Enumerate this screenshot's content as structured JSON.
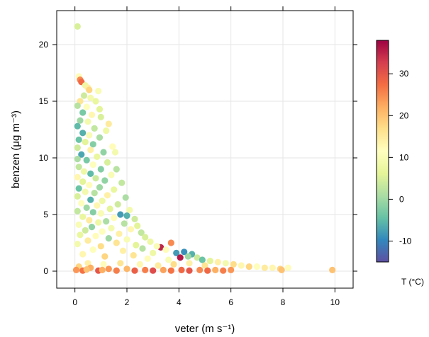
{
  "chart_data": {
    "type": "scatter",
    "xlabel": "veter (m s⁻¹)",
    "ylabel": "benzen (μg m⁻³)",
    "colorbar_label": "T (°C)",
    "x_ticks": [
      "0",
      "2",
      "4",
      "6",
      "8",
      "10"
    ],
    "y_ticks": [
      "0",
      "5",
      "10",
      "15",
      "20"
    ],
    "colorbar_ticks": [
      "-10",
      "0",
      "10",
      "20",
      "30"
    ],
    "xlim": [
      -0.7,
      10.7
    ],
    "ylim": [
      -1.5,
      23
    ],
    "color_range": [
      -15,
      38
    ],
    "grid": true,
    "palette": [
      "#5e4fa2",
      "#3288bd",
      "#66c2a5",
      "#abdda4",
      "#e6f598",
      "#ffffbf",
      "#fee08b",
      "#fdae61",
      "#f46d43",
      "#d53e4f",
      "#9e0142"
    ],
    "points": [
      {
        "x": 0.1,
        "y": 21.6,
        "t": 5
      },
      {
        "x": 0.15,
        "y": 17.2,
        "t": 12
      },
      {
        "x": 0.2,
        "y": 16.9,
        "t": 25
      },
      {
        "x": 0.25,
        "y": 16.7,
        "t": 28
      },
      {
        "x": 0.4,
        "y": 16.4,
        "t": 8
      },
      {
        "x": 0.5,
        "y": 16.2,
        "t": 14
      },
      {
        "x": 0.55,
        "y": 16.0,
        "t": 18
      },
      {
        "x": 0.9,
        "y": 15.9,
        "t": 10
      },
      {
        "x": 0.35,
        "y": 15.5,
        "t": 4
      },
      {
        "x": 0.6,
        "y": 15.3,
        "t": 9
      },
      {
        "x": 0.2,
        "y": 15.0,
        "t": 16
      },
      {
        "x": 0.8,
        "y": 15.0,
        "t": 7
      },
      {
        "x": 0.1,
        "y": 14.6,
        "t": 2
      },
      {
        "x": 0.45,
        "y": 14.5,
        "t": 11
      },
      {
        "x": 0.95,
        "y": 14.3,
        "t": 6
      },
      {
        "x": 0.3,
        "y": 14.0,
        "t": -3
      },
      {
        "x": 0.65,
        "y": 13.8,
        "t": 13
      },
      {
        "x": 1.0,
        "y": 13.6,
        "t": 5
      },
      {
        "x": 0.2,
        "y": 13.3,
        "t": 0
      },
      {
        "x": 0.5,
        "y": 13.2,
        "t": 9
      },
      {
        "x": 1.3,
        "y": 13.0,
        "t": 15
      },
      {
        "x": 0.1,
        "y": 12.8,
        "t": -5
      },
      {
        "x": 0.75,
        "y": 12.6,
        "t": 3
      },
      {
        "x": 1.2,
        "y": 12.4,
        "t": 8
      },
      {
        "x": 0.3,
        "y": 12.2,
        "t": -6
      },
      {
        "x": 0.55,
        "y": 12.0,
        "t": 10
      },
      {
        "x": 0.95,
        "y": 11.8,
        "t": 1
      },
      {
        "x": 0.15,
        "y": 11.6,
        "t": -4
      },
      {
        "x": 0.4,
        "y": 11.4,
        "t": 6
      },
      {
        "x": 0.7,
        "y": 11.2,
        "t": -2
      },
      {
        "x": 1.45,
        "y": 11.0,
        "t": 12
      },
      {
        "x": 0.1,
        "y": 10.9,
        "t": 4
      },
      {
        "x": 0.6,
        "y": 10.7,
        "t": 14
      },
      {
        "x": 1.1,
        "y": 10.5,
        "t": -1
      },
      {
        "x": 1.55,
        "y": 10.5,
        "t": 9
      },
      {
        "x": 0.25,
        "y": 10.3,
        "t": -7
      },
      {
        "x": 0.85,
        "y": 10.1,
        "t": 7
      },
      {
        "x": 0.1,
        "y": 9.9,
        "t": 1
      },
      {
        "x": 0.45,
        "y": 9.8,
        "t": -3
      },
      {
        "x": 1.25,
        "y": 9.6,
        "t": 5
      },
      {
        "x": 0.7,
        "y": 9.4,
        "t": 11
      },
      {
        "x": 0.15,
        "y": 9.2,
        "t": 3
      },
      {
        "x": 1.0,
        "y": 9.0,
        "t": -2
      },
      {
        "x": 1.6,
        "y": 9.0,
        "t": 2
      },
      {
        "x": 0.35,
        "y": 8.8,
        "t": 8
      },
      {
        "x": 0.6,
        "y": 8.6,
        "t": -5
      },
      {
        "x": 1.4,
        "y": 8.5,
        "t": 10
      },
      {
        "x": 0.1,
        "y": 8.3,
        "t": 13
      },
      {
        "x": 0.8,
        "y": 8.2,
        "t": 4
      },
      {
        "x": 1.15,
        "y": 8.0,
        "t": -1
      },
      {
        "x": 0.3,
        "y": 7.9,
        "t": 6
      },
      {
        "x": 1.8,
        "y": 7.8,
        "t": 3
      },
      {
        "x": 0.55,
        "y": 7.6,
        "t": 12
      },
      {
        "x": 0.95,
        "y": 7.4,
        "t": 0
      },
      {
        "x": 0.15,
        "y": 7.3,
        "t": -4
      },
      {
        "x": 1.5,
        "y": 7.2,
        "t": 7
      },
      {
        "x": 0.4,
        "y": 7.0,
        "t": 9
      },
      {
        "x": 0.75,
        "y": 6.9,
        "t": 2
      },
      {
        "x": 1.25,
        "y": 6.7,
        "t": 14
      },
      {
        "x": 0.1,
        "y": 6.6,
        "t": 5
      },
      {
        "x": 1.95,
        "y": 6.5,
        "t": 1
      },
      {
        "x": 0.6,
        "y": 6.3,
        "t": -6
      },
      {
        "x": 1.05,
        "y": 6.2,
        "t": 8
      },
      {
        "x": 0.25,
        "y": 6.0,
        "t": 11
      },
      {
        "x": 1.65,
        "y": 5.9,
        "t": 4
      },
      {
        "x": 0.85,
        "y": 5.8,
        "t": 13
      },
      {
        "x": 0.45,
        "y": 5.6,
        "t": 0
      },
      {
        "x": 1.35,
        "y": 5.5,
        "t": 6
      },
      {
        "x": 2.1,
        "y": 5.4,
        "t": 9
      },
      {
        "x": 0.1,
        "y": 5.3,
        "t": 3
      },
      {
        "x": 0.7,
        "y": 5.2,
        "t": -2
      },
      {
        "x": 1.0,
        "y": 5.1,
        "t": 10
      },
      {
        "x": 1.75,
        "y": 5.0,
        "t": -8
      },
      {
        "x": 2.0,
        "y": 4.9,
        "t": -6
      },
      {
        "x": 0.3,
        "y": 4.8,
        "t": 7
      },
      {
        "x": 1.5,
        "y": 4.7,
        "t": 12
      },
      {
        "x": 2.3,
        "y": 4.6,
        "t": 4
      },
      {
        "x": 0.55,
        "y": 4.5,
        "t": 15
      },
      {
        "x": 1.2,
        "y": 4.4,
        "t": 1
      },
      {
        "x": 0.9,
        "y": 4.3,
        "t": 8
      },
      {
        "x": 1.9,
        "y": 4.2,
        "t": 2
      },
      {
        "x": 0.15,
        "y": 4.1,
        "t": 10
      },
      {
        "x": 2.4,
        "y": 4.0,
        "t": 6
      },
      {
        "x": 0.65,
        "y": 3.9,
        "t": -1
      },
      {
        "x": 1.4,
        "y": 3.8,
        "t": 9
      },
      {
        "x": 2.15,
        "y": 3.7,
        "t": 13
      },
      {
        "x": 0.4,
        "y": 3.6,
        "t": 4
      },
      {
        "x": 1.05,
        "y": 3.5,
        "t": 11
      },
      {
        "x": 2.55,
        "y": 3.4,
        "t": 3
      },
      {
        "x": 1.7,
        "y": 3.3,
        "t": 14
      },
      {
        "x": 0.2,
        "y": 3.2,
        "t": 7
      },
      {
        "x": 0.8,
        "y": 3.1,
        "t": 12
      },
      {
        "x": 2.7,
        "y": 3.0,
        "t": 5
      },
      {
        "x": 1.3,
        "y": 2.9,
        "t": 0
      },
      {
        "x": 2.0,
        "y": 2.8,
        "t": 10
      },
      {
        "x": 0.5,
        "y": 2.7,
        "t": 15
      },
      {
        "x": 2.9,
        "y": 2.6,
        "t": 8
      },
      {
        "x": 1.6,
        "y": 2.5,
        "t": 16
      },
      {
        "x": 0.1,
        "y": 2.4,
        "t": 9
      },
      {
        "x": 2.35,
        "y": 2.3,
        "t": 6
      },
      {
        "x": 1.0,
        "y": 2.2,
        "t": 17
      },
      {
        "x": 3.3,
        "y": 2.1,
        "t": 35
      },
      {
        "x": 3.15,
        "y": 2.2,
        "t": 10
      },
      {
        "x": 2.6,
        "y": 2.0,
        "t": 2
      },
      {
        "x": 3.7,
        "y": 2.5,
        "t": 25
      },
      {
        "x": 3.5,
        "y": 1.9,
        "t": 12
      },
      {
        "x": 0.7,
        "y": 1.9,
        "t": 11
      },
      {
        "x": 1.85,
        "y": 1.8,
        "t": 14
      },
      {
        "x": 3.9,
        "y": 1.6,
        "t": -8
      },
      {
        "x": 4.2,
        "y": 1.7,
        "t": -9
      },
      {
        "x": 4.5,
        "y": 1.5,
        "t": -6
      },
      {
        "x": 3.0,
        "y": 1.6,
        "t": 8
      },
      {
        "x": 4.05,
        "y": 1.2,
        "t": 36
      },
      {
        "x": 4.35,
        "y": 1.3,
        "t": 0
      },
      {
        "x": 4.7,
        "y": 1.2,
        "t": 4
      },
      {
        "x": 2.25,
        "y": 1.4,
        "t": 16
      },
      {
        "x": 0.3,
        "y": 1.5,
        "t": 13
      },
      {
        "x": 1.15,
        "y": 1.3,
        "t": 18
      },
      {
        "x": 4.9,
        "y": 1.0,
        "t": -4
      },
      {
        "x": 5.2,
        "y": 0.9,
        "t": 6
      },
      {
        "x": 3.6,
        "y": 1.0,
        "t": 10
      },
      {
        "x": 5.5,
        "y": 0.8,
        "t": 14
      },
      {
        "x": 2.8,
        "y": 1.1,
        "t": 12
      },
      {
        "x": 5.8,
        "y": 0.7,
        "t": 9
      },
      {
        "x": 6.1,
        "y": 0.6,
        "t": 17
      },
      {
        "x": 6.4,
        "y": 0.5,
        "t": 13
      },
      {
        "x": 6.7,
        "y": 0.4,
        "t": 18
      },
      {
        "x": 7.0,
        "y": 0.4,
        "t": 11
      },
      {
        "x": 7.3,
        "y": 0.3,
        "t": 15
      },
      {
        "x": 7.6,
        "y": 0.3,
        "t": 13
      },
      {
        "x": 7.9,
        "y": 0.2,
        "t": 18
      },
      {
        "x": 8.2,
        "y": 0.3,
        "t": 12
      },
      {
        "x": 7.95,
        "y": 0.1,
        "t": 20
      },
      {
        "x": 9.9,
        "y": 0.1,
        "t": 20
      },
      {
        "x": 5.0,
        "y": 0.5,
        "t": 16
      },
      {
        "x": 4.4,
        "y": 0.7,
        "t": 14
      },
      {
        "x": 3.8,
        "y": 0.6,
        "t": 17
      },
      {
        "x": 3.2,
        "y": 0.5,
        "t": 15
      },
      {
        "x": 2.5,
        "y": 0.6,
        "t": 13
      },
      {
        "x": 1.75,
        "y": 0.7,
        "t": 16
      },
      {
        "x": 1.1,
        "y": 0.6,
        "t": 12
      },
      {
        "x": 0.5,
        "y": 0.7,
        "t": 14
      },
      {
        "x": 0.15,
        "y": 0.4,
        "t": 18
      },
      {
        "x": 0.6,
        "y": 0.3,
        "t": 22
      },
      {
        "x": 1.3,
        "y": 0.2,
        "t": 24
      },
      {
        "x": 2.0,
        "y": 0.2,
        "t": 21
      },
      {
        "x": 2.7,
        "y": 0.1,
        "t": 26
      },
      {
        "x": 3.4,
        "y": 0.1,
        "t": 23
      },
      {
        "x": 4.1,
        "y": 0.1,
        "t": 28
      },
      {
        "x": 4.8,
        "y": 0.1,
        "t": 25
      },
      {
        "x": 5.4,
        "y": 0.1,
        "t": 22
      },
      {
        "x": 6.0,
        "y": 0.1,
        "t": 24
      },
      {
        "x": 0.3,
        "y": 0.05,
        "t": 27
      },
      {
        "x": 0.9,
        "y": 0.05,
        "t": 30
      },
      {
        "x": 1.6,
        "y": 0.05,
        "t": 26
      },
      {
        "x": 2.3,
        "y": 0.05,
        "t": 29
      },
      {
        "x": 3.0,
        "y": 0.05,
        "t": 31
      },
      {
        "x": 3.7,
        "y": 0.05,
        "t": 27
      },
      {
        "x": 4.4,
        "y": 0.05,
        "t": 30
      },
      {
        "x": 5.1,
        "y": 0.05,
        "t": 28
      },
      {
        "x": 5.7,
        "y": 0.05,
        "t": 26
      },
      {
        "x": 0.05,
        "y": 0.1,
        "t": 24
      },
      {
        "x": 0.45,
        "y": 0.15,
        "t": 20
      },
      {
        "x": 1.05,
        "y": 0.1,
        "t": 22
      }
    ]
  }
}
